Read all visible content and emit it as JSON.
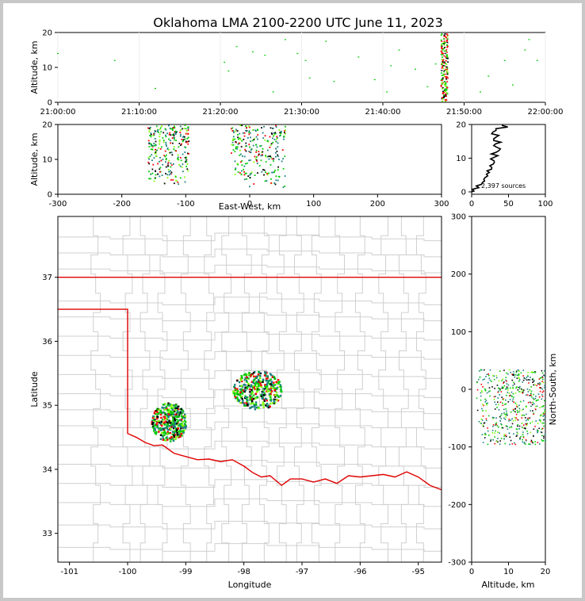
{
  "title": "Oklahoma LMA 2100-2200 UTC June 11, 2023",
  "colors": {
    "state_border": "#e00000",
    "county_border": "#cfcfcf",
    "axis": "#000000",
    "sources_low": "#1a7f7f",
    "sources_mid": "#00cc00",
    "sources_high": "#ff0000",
    "sources_dark": "#000000",
    "sources_light": "#7fff00"
  },
  "chart_data": [
    {
      "id": "time_height",
      "type": "scatter",
      "xlabel": "",
      "ylabel": "Altitude, km",
      "xlim": [
        "21:00:00",
        "22:00:00"
      ],
      "ylim": [
        0,
        20
      ],
      "xticks": [
        "21:00:00",
        "21:10:00",
        "21:20:00",
        "21:30:00",
        "21:40:00",
        "21:50:00",
        "22:00:00"
      ],
      "yticks": [
        0,
        10,
        20
      ],
      "dense_column_time": "21:47:30",
      "points": [
        {
          "t": "21:20:30",
          "alt": 11.5
        },
        {
          "t": "21:21:00",
          "alt": 9.0
        },
        {
          "t": "21:22:00",
          "alt": 16.0
        },
        {
          "t": "21:24:00",
          "alt": 14.5
        },
        {
          "t": "21:25:30",
          "alt": 13.5
        },
        {
          "t": "21:26:30",
          "alt": 3.0
        },
        {
          "t": "21:28:00",
          "alt": 18.0
        },
        {
          "t": "21:29:30",
          "alt": 14.0
        },
        {
          "t": "21:30:30",
          "alt": 12.0
        },
        {
          "t": "21:31:00",
          "alt": 7.0
        },
        {
          "t": "21:33:00",
          "alt": 17.5
        },
        {
          "t": "21:34:00",
          "alt": 6.0
        },
        {
          "t": "21:37:00",
          "alt": 13.0
        },
        {
          "t": "21:39:00",
          "alt": 6.5
        },
        {
          "t": "21:40:30",
          "alt": 3.0
        },
        {
          "t": "21:41:00",
          "alt": 10.5
        },
        {
          "t": "21:42:00",
          "alt": 15.0
        },
        {
          "t": "21:44:00",
          "alt": 9.5
        },
        {
          "t": "21:45:30",
          "alt": 4.5
        },
        {
          "t": "21:46:30",
          "alt": 11.0
        },
        {
          "t": "21:52:00",
          "alt": 3.0
        },
        {
          "t": "21:53:00",
          "alt": 7.5
        },
        {
          "t": "21:55:00",
          "alt": 12.0
        },
        {
          "t": "21:56:00",
          "alt": 5.0
        },
        {
          "t": "21:57:30",
          "alt": 15.0
        },
        {
          "t": "21:59:00",
          "alt": 12.0
        },
        {
          "t": "21:07:00",
          "alt": 12.0
        },
        {
          "t": "21:12:00",
          "alt": 4.0
        },
        {
          "t": "21:00:00",
          "alt": 14.0
        },
        {
          "t": "21:58:00",
          "alt": 18.0
        }
      ]
    },
    {
      "id": "ew_altitude",
      "type": "scatter",
      "xlabel": "East-West, km",
      "ylabel": "Altitude, km",
      "xlim": [
        -300,
        300
      ],
      "ylim": [
        0,
        20
      ],
      "xticks": [
        -300,
        -200,
        -100,
        0,
        100,
        200,
        300
      ],
      "yticks": [
        0,
        10,
        20
      ],
      "clusters": [
        {
          "x_min": -160,
          "x_max": -95,
          "alt_min": 3,
          "alt_max": 20
        },
        {
          "x_min": -30,
          "x_max": 55,
          "alt_min": 2,
          "alt_max": 20
        }
      ]
    },
    {
      "id": "altitude_histogram",
      "type": "line",
      "xlabel": "",
      "ylabel": "",
      "xlim": [
        0,
        100
      ],
      "ylim": [
        0,
        20
      ],
      "xticks": [
        0,
        50,
        100
      ],
      "yticks": [
        0,
        10,
        20
      ],
      "annotation": "2,397 sources",
      "profile": [
        {
          "alt": 0.5,
          "count": 2
        },
        {
          "alt": 1.5,
          "count": 8
        },
        {
          "alt": 2.5,
          "count": 14
        },
        {
          "alt": 3.5,
          "count": 17
        },
        {
          "alt": 4.5,
          "count": 20
        },
        {
          "alt": 5.5,
          "count": 22
        },
        {
          "alt": 6.5,
          "count": 24
        },
        {
          "alt": 7.5,
          "count": 26
        },
        {
          "alt": 8.5,
          "count": 30
        },
        {
          "alt": 9.5,
          "count": 28
        },
        {
          "alt": 10.5,
          "count": 33
        },
        {
          "alt": 11.5,
          "count": 30
        },
        {
          "alt": 12.5,
          "count": 38
        },
        {
          "alt": 13.5,
          "count": 32
        },
        {
          "alt": 14.5,
          "count": 36
        },
        {
          "alt": 15.5,
          "count": 30
        },
        {
          "alt": 16.5,
          "count": 35
        },
        {
          "alt": 17.5,
          "count": 28
        },
        {
          "alt": 18.5,
          "count": 33
        },
        {
          "alt": 19.5,
          "count": 45
        }
      ]
    },
    {
      "id": "plan_view",
      "type": "scatter",
      "xlabel": "Longitude",
      "ylabel": "Latitude",
      "xlim": [
        -101.2,
        -94.6
      ],
      "ylim": [
        32.55,
        37.95
      ],
      "xticks": [
        -101,
        -100,
        -99,
        -98,
        -97,
        -96,
        -95
      ],
      "yticks": [
        33,
        34,
        35,
        36,
        37
      ],
      "clusters": [
        {
          "lon_min": -99.6,
          "lon_max": -99.0,
          "lat_min": 34.45,
          "lat_max": 35.05
        },
        {
          "lon_min": -98.2,
          "lon_max": -97.35,
          "lat_min": 34.95,
          "lat_max": 35.55
        }
      ]
    },
    {
      "id": "altitude_ns",
      "type": "scatter",
      "xlabel": "Altitude, km",
      "ylabel": "North-South, km",
      "xlim": [
        0,
        20
      ],
      "ylim": [
        -300,
        300
      ],
      "xticks": [
        0,
        10,
        20
      ],
      "yticks": [
        -300,
        -200,
        -100,
        0,
        100,
        200,
        300
      ],
      "cluster": {
        "alt_min": 1,
        "alt_max": 20,
        "ns_min": -95,
        "ns_max": 35
      }
    }
  ]
}
